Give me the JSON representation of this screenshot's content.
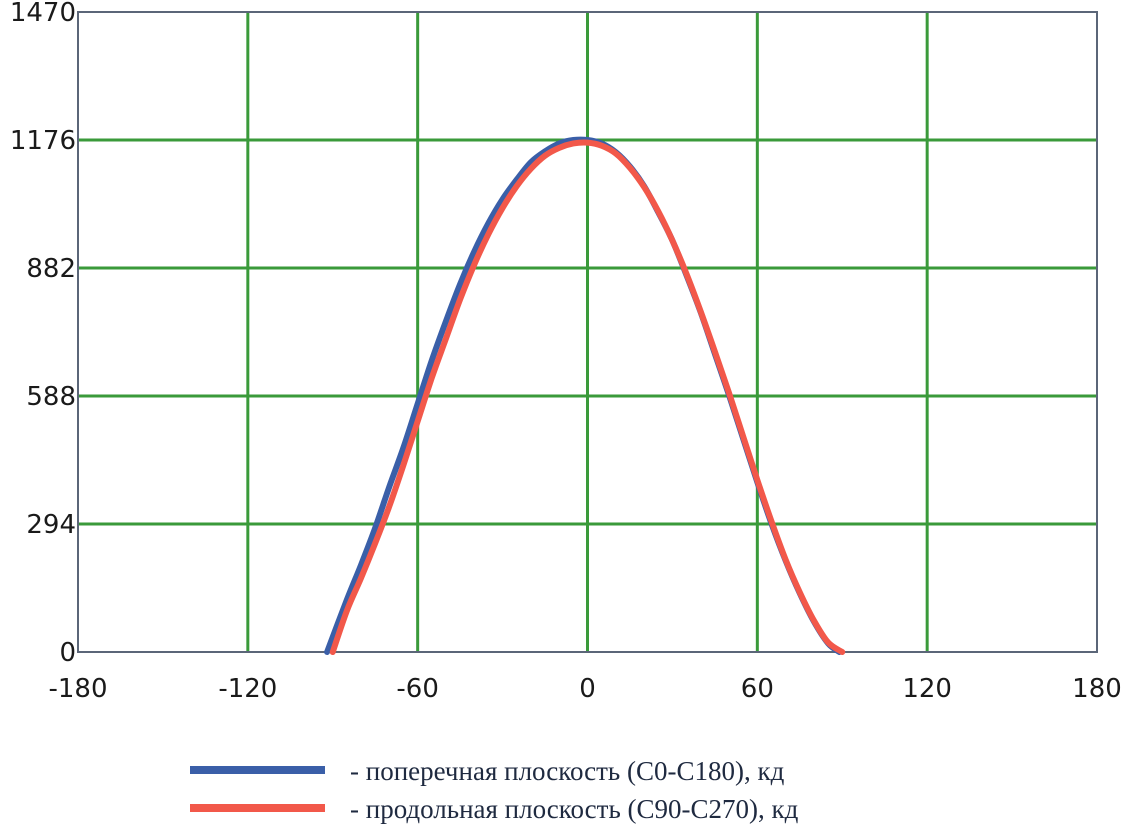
{
  "chart_data": {
    "type": "line",
    "title": "",
    "xlabel": "",
    "ylabel": "",
    "xlim": [
      -180,
      180
    ],
    "ylim": [
      0,
      1470
    ],
    "x_ticks": [
      -180,
      -120,
      -60,
      0,
      60,
      120,
      180
    ],
    "y_ticks": [
      0,
      294,
      588,
      882,
      1176,
      1470
    ],
    "grid": true,
    "legend_position": "bottom",
    "colors": {
      "grid": "#3a9a3a",
      "axis": "#5b6678",
      "blue_series": "#3a5fa8",
      "red_series": "#f2584a"
    },
    "series": [
      {
        "name": "- поперечная плоскость (C0-C180), кд",
        "color": "#3a5fa8",
        "x": [
          -92,
          -85,
          -80,
          -75,
          -70,
          -65,
          -60,
          -55,
          -50,
          -45,
          -40,
          -35,
          -30,
          -25,
          -20,
          -15,
          -10,
          -5,
          0,
          5,
          10,
          15,
          20,
          25,
          30,
          35,
          40,
          45,
          50,
          55,
          60,
          65,
          70,
          75,
          80,
          85,
          89
        ],
        "y": [
          0,
          120,
          200,
          285,
          380,
          470,
          570,
          670,
          760,
          845,
          920,
          985,
          1040,
          1085,
          1125,
          1150,
          1168,
          1176,
          1176,
          1168,
          1148,
          1115,
          1070,
          1010,
          945,
          865,
          780,
          685,
          590,
          490,
          390,
          295,
          210,
          135,
          70,
          20,
          0
        ]
      },
      {
        "name": "- продольная плоскость (C90-C270), кд",
        "color": "#f2584a",
        "x": [
          -90,
          -85,
          -80,
          -75,
          -70,
          -65,
          -60,
          -55,
          -50,
          -45,
          -40,
          -35,
          -30,
          -25,
          -20,
          -15,
          -10,
          -5,
          0,
          5,
          10,
          15,
          20,
          25,
          30,
          35,
          40,
          45,
          50,
          55,
          60,
          65,
          70,
          75,
          80,
          85,
          90
        ],
        "y": [
          0,
          95,
          170,
          250,
          335,
          430,
          530,
          630,
          720,
          810,
          890,
          960,
          1020,
          1070,
          1110,
          1140,
          1158,
          1168,
          1170,
          1163,
          1145,
          1112,
          1068,
          1012,
          945,
          868,
          782,
          690,
          595,
          495,
          395,
          300,
          212,
          137,
          72,
          22,
          0
        ]
      }
    ]
  }
}
